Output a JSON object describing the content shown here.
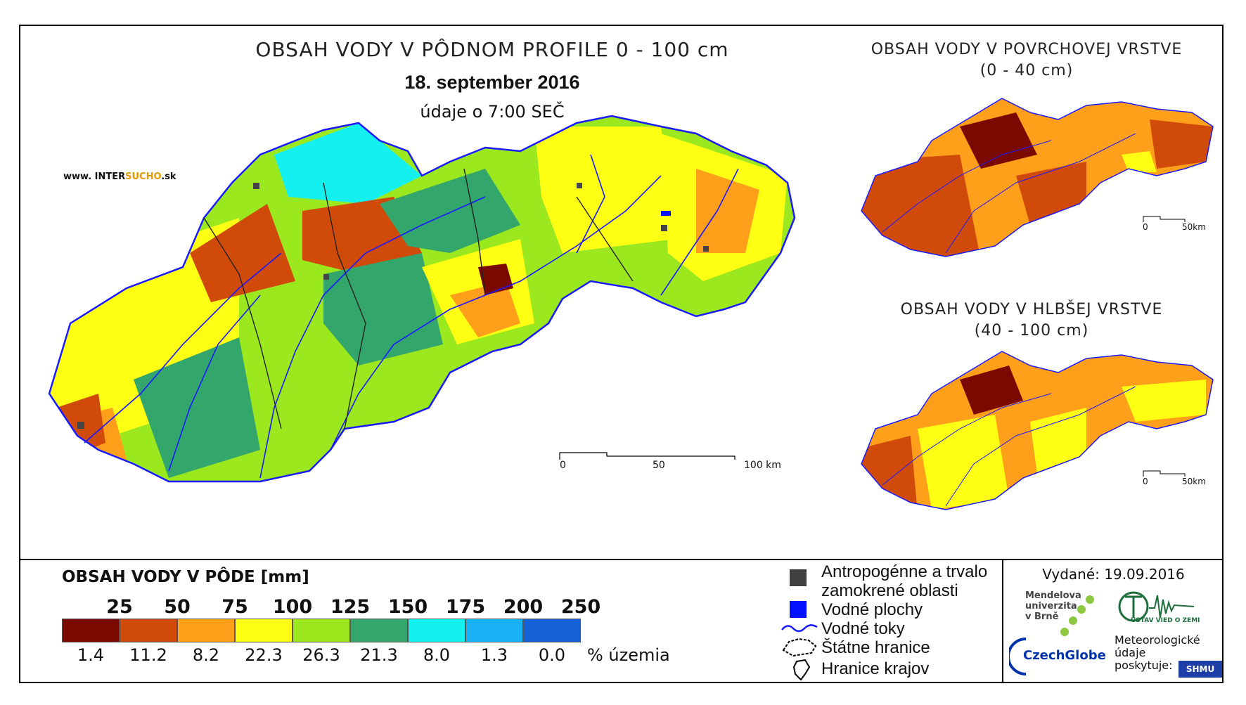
{
  "titles": {
    "main": "OBSAH VODY V PÔDNOM PROFILE 0 - 100 cm",
    "date": "18. september 2016",
    "time": "údaje o 7:00 SEČ",
    "website_prefix": "www. INTER",
    "website_highlight": "SUCHO",
    "website_suffix": ".sk",
    "surface_line1": "OBSAH VODY V POVRCHOVEJ VRSTVE",
    "surface_line2": "(0 - 40 cm)",
    "deep_line1": "OBSAH VODY V HLBŠEJ VRSTVE",
    "deep_line2": "(40 - 100 cm)"
  },
  "scale_main": {
    "l0": "0",
    "l1": "50",
    "l2": "100 km"
  },
  "scale_small": {
    "l0": "0",
    "l1": "50km"
  },
  "legend": {
    "title": "OBSAH VODY V PÔDE [mm]",
    "thresholds": [
      "25",
      "50",
      "75",
      "100",
      "125",
      "150",
      "175",
      "200",
      "250"
    ],
    "classes": [
      {
        "color": "#7a0a00",
        "percent": "1.4"
      },
      {
        "color": "#d04a0a",
        "percent": "11.2"
      },
      {
        "color": "#ff9f1a",
        "percent": "8.2"
      },
      {
        "color": "#ffff14",
        "percent": "22.3"
      },
      {
        "color": "#9be81f",
        "percent": "26.3"
      },
      {
        "color": "#33a66b",
        "percent": "21.3"
      },
      {
        "color": "#14f0f0",
        "percent": "8.0"
      },
      {
        "color": "#1ab0f5",
        "percent": "1.3"
      },
      {
        "color": "#1560d6",
        "percent": "0.0"
      }
    ],
    "unit": "% územia"
  },
  "symbols": {
    "anthro_line1": "Antropogénne a trvalo",
    "anthro_line2": "zamokrené oblasti",
    "water_bodies": "Vodné plochy",
    "rivers": "Vodné toky",
    "state_border": "Štátne hranice",
    "region_border": "Hranice krajov"
  },
  "credits": {
    "issued": "Vydané: 19.09.2016",
    "mendel_line1": "Mendelova",
    "mendel_line2": "univerzita",
    "mendel_line3": "v Brně",
    "czechglobe": "CzechGlobe",
    "uvz": "ÚSTAV VIED O ZEMI",
    "meteo_line1": "Meteorologické",
    "meteo_line2": "údaje",
    "meteo_line3": "poskytuje:",
    "shmu": "SHMU"
  }
}
